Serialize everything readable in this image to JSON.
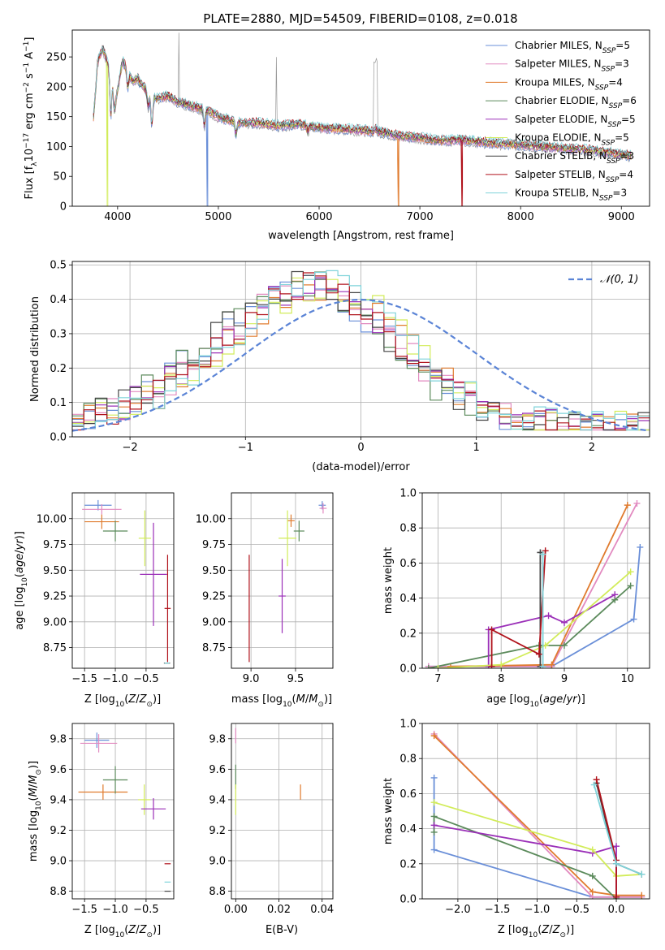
{
  "figure_title": "PLATE=2880, MJD=54509, FIBERID=0108, z=0.018",
  "colors": {
    "Chabrier MILES": "#6a8fd8",
    "Salpeter MILES": "#e28ac0",
    "Kroupa MILES": "#e07b2e",
    "Chabrier ELODIE": "#5b8a5b",
    "Salpeter ELODIE": "#9b30b8",
    "Kroupa ELODIE": "#d2ec5a",
    "Chabrier STELIB": "#444444",
    "Salpeter STELIB": "#b0121b",
    "Kroupa STELIB": "#7fd3da",
    "data": "#999999",
    "normal": "#5b84d6"
  },
  "chart_data": [
    {
      "id": "spectrum",
      "type": "line",
      "xlabel": "wavelength [Angstrom, rest frame]",
      "ylabel": "Flux [f",
      "xlim": [
        3550,
        9280
      ],
      "ylim": [
        0,
        295
      ],
      "xticks": [
        4000,
        5000,
        6000,
        7000,
        8000,
        9000
      ],
      "yticks": [
        0,
        50,
        100,
        150,
        200,
        250
      ],
      "grid": false,
      "legend_position": "top-right",
      "legend": [
        {
          "name": "Chabrier MILES",
          "nssp": "5"
        },
        {
          "name": "Salpeter MILES",
          "nssp": "3"
        },
        {
          "name": "Kroupa MILES",
          "nssp": "4"
        },
        {
          "name": "Chabrier ELODIE",
          "nssp": "6"
        },
        {
          "name": "Salpeter ELODIE",
          "nssp": "5"
        },
        {
          "name": "Kroupa ELODIE",
          "nssp": "5"
        },
        {
          "name": "Chabrier STELIB",
          "nssp": "3"
        },
        {
          "name": "Salpeter STELIB",
          "nssp": "4"
        },
        {
          "name": "Kroupa STELIB",
          "nssp": "3"
        }
      ],
      "continuum": [
        [
          3750,
          130
        ],
        [
          3780,
          190
        ],
        [
          3800,
          240
        ],
        [
          3850,
          265
        ],
        [
          3900,
          240
        ],
        [
          3950,
          210
        ],
        [
          3980,
          175
        ],
        [
          4050,
          245
        ],
        [
          4100,
          225
        ],
        [
          4150,
          210
        ],
        [
          4200,
          215
        ],
        [
          4300,
          190
        ],
        [
          4350,
          180
        ],
        [
          4500,
          185
        ],
        [
          4600,
          175
        ],
        [
          4700,
          170
        ],
        [
          4800,
          165
        ],
        [
          4900,
          160
        ],
        [
          5000,
          150
        ],
        [
          5200,
          140
        ],
        [
          5400,
          140
        ],
        [
          5600,
          135
        ],
        [
          5800,
          138
        ],
        [
          6000,
          132
        ],
        [
          6200,
          130
        ],
        [
          6400,
          128
        ],
        [
          6600,
          125
        ],
        [
          6800,
          118
        ],
        [
          7000,
          115
        ],
        [
          7200,
          110
        ],
        [
          7400,
          112
        ],
        [
          7600,
          108
        ],
        [
          7800,
          105
        ],
        [
          8000,
          103
        ],
        [
          8200,
          100
        ],
        [
          8400,
          98
        ],
        [
          8600,
          96
        ],
        [
          8800,
          92
        ],
        [
          9000,
          87
        ],
        [
          9100,
          85
        ]
      ],
      "absorption": [
        [
          3933,
          150
        ],
        [
          3968,
          160
        ],
        [
          4102,
          200
        ],
        [
          4227,
          205
        ],
        [
          4304,
          165
        ],
        [
          4340,
          135
        ],
        [
          4861,
          135
        ],
        [
          5175,
          120
        ],
        [
          5890,
          125
        ],
        [
          6563,
          130
        ]
      ],
      "dropouts": [
        {
          "model": "Kroupa ELODIE",
          "x": 3900
        },
        {
          "model": "Chabrier MILES",
          "x": 4890
        },
        {
          "model": "Kroupa MILES",
          "x": 6790
        },
        {
          "model": "Salpeter STELIB",
          "x": 7420
        }
      ]
    },
    {
      "id": "residuals",
      "type": "step",
      "xlabel": "(data-model)/error",
      "ylabel": "Normed distribution",
      "xlim": [
        -2.5,
        2.5
      ],
      "ylim": [
        0,
        0.51
      ],
      "xticks": [
        -2,
        -1,
        0,
        1,
        2
      ],
      "yticks": [
        0.0,
        0.1,
        0.2,
        0.3,
        0.4,
        0.5
      ],
      "grid": true,
      "legend_position": "top-right",
      "legend": [
        "𝒩(0, 1)"
      ],
      "normal_curve": {
        "mean": 0,
        "sigma": 1
      }
    },
    {
      "id": "age_vs_Z",
      "type": "errorbar",
      "xlabel": "Z [log",
      "ylabel": "age  [log",
      "xlim": [
        -1.7,
        -0.05
      ],
      "ylim": [
        8.55,
        10.25
      ],
      "xticks": [
        -1.5,
        -1.0,
        -0.5
      ],
      "yticks": [
        8.75,
        9.0,
        9.25,
        9.5,
        9.75,
        10.0
      ],
      "grid": true,
      "points": [
        {
          "model": "Chabrier MILES",
          "x": -1.28,
          "xerr": 0.22,
          "y": 10.13,
          "yerr": 0.05
        },
        {
          "model": "Salpeter MILES",
          "x": -1.22,
          "xerr": 0.32,
          "y": 10.09,
          "yerr": 0.05
        },
        {
          "model": "Kroupa MILES",
          "x": -1.22,
          "xerr": 0.28,
          "y": 9.97,
          "yerr": 0.07
        },
        {
          "model": "Chabrier ELODIE",
          "x": -1.0,
          "xerr": 0.2,
          "y": 9.88,
          "yerr": 0.1
        },
        {
          "model": "Kroupa ELODIE",
          "x": -0.52,
          "xerr": 0.1,
          "y": 9.81,
          "yerr": 0.27
        },
        {
          "model": "Salpeter ELODIE",
          "x": -0.38,
          "xerr": 0.22,
          "y": 9.46,
          "yerr": 0.5
        },
        {
          "model": "Salpeter STELIB",
          "x": -0.15,
          "xerr": 0.05,
          "y": 9.13,
          "yerr": 0.52
        },
        {
          "model": "Chabrier STELIB",
          "x": -0.16,
          "xerr": 0.05,
          "y": 8.6,
          "yerr": 0.0
        },
        {
          "model": "Kroupa STELIB",
          "x": -0.16,
          "xerr": 0.04,
          "y": 8.6,
          "yerr": 0.0
        }
      ]
    },
    {
      "id": "age_vs_mass",
      "type": "errorbar",
      "xlabel": "mass [log",
      "ylabel": "",
      "xlim": [
        8.78,
        9.92
      ],
      "ylim": [
        8.55,
        10.25
      ],
      "xticks": [
        9.0,
        9.5
      ],
      "yticks": [
        8.75,
        9.0,
        9.25,
        9.5,
        9.75,
        10.0
      ],
      "grid": true,
      "points": [
        {
          "model": "Chabrier MILES",
          "x": 9.8,
          "xerr": 0.04,
          "y": 10.13,
          "yerr": 0.04
        },
        {
          "model": "Salpeter MILES",
          "x": 9.81,
          "xerr": 0.04,
          "y": 10.1,
          "yerr": 0.05
        },
        {
          "model": "Kroupa MILES",
          "x": 9.45,
          "xerr": 0.04,
          "y": 9.98,
          "yerr": 0.06
        },
        {
          "model": "Chabrier ELODIE",
          "x": 9.54,
          "xerr": 0.06,
          "y": 9.88,
          "yerr": 0.1
        },
        {
          "model": "Kroupa ELODIE",
          "x": 9.41,
          "xerr": 0.1,
          "y": 9.81,
          "yerr": 0.27
        },
        {
          "model": "Salpeter ELODIE",
          "x": 9.35,
          "xerr": 0.04,
          "y": 9.25,
          "yerr": 0.36
        },
        {
          "model": "Salpeter STELIB",
          "x": 8.98,
          "xerr": 0.0,
          "y": 9.13,
          "yerr": 0.52
        }
      ]
    },
    {
      "id": "weight_vs_age",
      "type": "line",
      "xlabel": "age  [log",
      "ylabel": "mass weight",
      "xlim": [
        6.75,
        10.35
      ],
      "ylim": [
        0,
        1.0
      ],
      "xticks": [
        7,
        8,
        9,
        10
      ],
      "yticks": [
        0.0,
        0.2,
        0.4,
        0.6,
        0.8,
        1.0
      ],
      "grid": true,
      "series": [
        {
          "model": "Chabrier MILES",
          "x": [
            6.85,
            8.8,
            10.1,
            10.2
          ],
          "y": [
            0.01,
            0.01,
            0.28,
            0.69
          ]
        },
        {
          "model": "Salpeter MILES",
          "x": [
            6.85,
            8.8,
            10.15
          ],
          "y": [
            0.01,
            0.01,
            0.94
          ]
        },
        {
          "model": "Kroupa MILES",
          "x": [
            7.2,
            8.8,
            10.0
          ],
          "y": [
            0.01,
            0.02,
            0.93
          ]
        },
        {
          "model": "Chabrier ELODIE",
          "x": [
            6.85,
            8.6,
            9.0,
            9.8,
            10.05
          ],
          "y": [
            0.0,
            0.13,
            0.13,
            0.39,
            0.47
          ]
        },
        {
          "model": "Salpeter ELODIE",
          "x": [
            7.8,
            7.8,
            8.75,
            9.0,
            9.8
          ],
          "y": [
            0.01,
            0.22,
            0.3,
            0.26,
            0.42
          ]
        },
        {
          "model": "Kroupa ELODIE",
          "x": [
            7.0,
            8.0,
            8.7,
            10.05
          ],
          "y": [
            0.0,
            0.02,
            0.13,
            0.55
          ]
        },
        {
          "model": "Chabrier STELIB",
          "x": [
            8.62,
            8.62,
            8.62
          ],
          "y": [
            0.01,
            0.66,
            0.66
          ]
        },
        {
          "model": "Salpeter STELIB",
          "x": [
            7.85,
            7.85,
            8.6,
            8.7
          ],
          "y": [
            0.01,
            0.22,
            0.08,
            0.67
          ]
        },
        {
          "model": "Kroupa STELIB",
          "x": [
            8.66,
            8.66
          ],
          "y": [
            0.01,
            0.65
          ]
        }
      ]
    },
    {
      "id": "mass_vs_Z",
      "type": "errorbar",
      "xlabel": "Z [log",
      "ylabel": "mass [log",
      "xlim": [
        -1.7,
        -0.05
      ],
      "ylim": [
        8.75,
        9.9
      ],
      "xticks": [
        -1.5,
        -1.0,
        -0.5
      ],
      "yticks": [
        8.8,
        9.0,
        9.2,
        9.4,
        9.6,
        9.8
      ],
      "grid": true,
      "points": [
        {
          "model": "Chabrier MILES",
          "x": -1.3,
          "xerr": 0.2,
          "y": 9.79,
          "yerr": 0.05
        },
        {
          "model": "Salpeter MILES",
          "x": -1.27,
          "xerr": 0.3,
          "y": 9.77,
          "yerr": 0.06
        },
        {
          "model": "Kroupa MILES",
          "x": -1.2,
          "xerr": 0.4,
          "y": 9.45,
          "yerr": 0.05
        },
        {
          "model": "Chabrier ELODIE",
          "x": -1.0,
          "xerr": 0.2,
          "y": 9.53,
          "yerr": 0.09
        },
        {
          "model": "Kroupa ELODIE",
          "x": -0.53,
          "xerr": 0.1,
          "y": 9.4,
          "yerr": 0.1
        },
        {
          "model": "Salpeter ELODIE",
          "x": -0.38,
          "xerr": 0.2,
          "y": 9.34,
          "yerr": 0.07
        },
        {
          "model": "Salpeter STELIB",
          "x": -0.15,
          "xerr": 0.05,
          "y": 8.98,
          "yerr": 0.0
        },
        {
          "model": "Kroupa STELIB",
          "x": -0.15,
          "xerr": 0.05,
          "y": 8.86,
          "yerr": 0.0
        },
        {
          "model": "Chabrier STELIB",
          "x": -0.15,
          "xerr": 0.05,
          "y": 8.8,
          "yerr": 0.0
        }
      ]
    },
    {
      "id": "mass_vs_ebv",
      "type": "errorbar",
      "xlabel": "E(B-V)",
      "ylabel": "",
      "xlim": [
        -0.002,
        0.045
      ],
      "ylim": [
        8.75,
        9.9
      ],
      "xticks": [
        0.0,
        0.02,
        0.04
      ],
      "yticks": [
        8.8,
        9.0,
        9.2,
        9.4,
        9.6,
        9.8
      ],
      "grid": true,
      "points": [
        {
          "model": "Salpeter MILES",
          "x": 0.0,
          "xerr": 0.0,
          "y": 9.82,
          "yerr": 0.05
        },
        {
          "model": "Chabrier ELODIE",
          "x": 0.0,
          "xerr": 0.0,
          "y": 9.55,
          "yerr": 0.08
        },
        {
          "model": "Kroupa ELODIE",
          "x": 0.0,
          "xerr": 0.0,
          "y": 9.4,
          "yerr": 0.1
        },
        {
          "model": "Kroupa MILES",
          "x": 0.03,
          "xerr": 0.0,
          "y": 9.45,
          "yerr": 0.05
        }
      ]
    },
    {
      "id": "weight_vs_Z",
      "type": "line",
      "xlabel": "Z [log",
      "ylabel": "mass weight",
      "xlim": [
        -2.45,
        0.42
      ],
      "ylim": [
        0,
        1.0
      ],
      "xticks": [
        -2.0,
        -1.5,
        -1.0,
        -0.5,
        0.0
      ],
      "yticks": [
        0.0,
        0.2,
        0.4,
        0.6,
        0.8,
        1.0
      ],
      "grid": true,
      "series": [
        {
          "model": "Chabrier MILES",
          "x": [
            -2.3,
            -2.3,
            -0.3,
            0.32
          ],
          "y": [
            0.69,
            0.28,
            0.01,
            0.01
          ]
        },
        {
          "model": "Salpeter MILES",
          "x": [
            -2.3,
            -0.3,
            0.32
          ],
          "y": [
            0.94,
            0.01,
            0.01
          ]
        },
        {
          "model": "Kroupa MILES",
          "x": [
            -2.3,
            -0.3,
            0.0,
            0.32
          ],
          "y": [
            0.93,
            0.04,
            0.02,
            0.02
          ]
        },
        {
          "model": "Chabrier ELODIE",
          "x": [
            -2.3,
            -2.3,
            -0.3,
            0.0
          ],
          "y": [
            0.38,
            0.47,
            0.13,
            0.0
          ]
        },
        {
          "model": "Salpeter ELODIE",
          "x": [
            -2.3,
            -0.3,
            0.0,
            0.0
          ],
          "y": [
            0.42,
            0.26,
            0.3,
            0.01
          ]
        },
        {
          "model": "Kroupa ELODIE",
          "x": [
            -2.3,
            -0.3,
            0.0,
            0.32
          ],
          "y": [
            0.55,
            0.28,
            0.13,
            0.14
          ]
        },
        {
          "model": "Chabrier STELIB",
          "x": [
            -0.25,
            0.0,
            0.32
          ],
          "y": [
            0.66,
            0.2,
            0.14
          ]
        },
        {
          "model": "Salpeter STELIB",
          "x": [
            -0.25,
            0.0,
            0.0
          ],
          "y": [
            0.68,
            0.22,
            0.01
          ]
        },
        {
          "model": "Kroupa STELIB",
          "x": [
            -0.28,
            0.0,
            0.32
          ],
          "y": [
            0.65,
            0.2,
            0.14
          ]
        }
      ]
    }
  ]
}
